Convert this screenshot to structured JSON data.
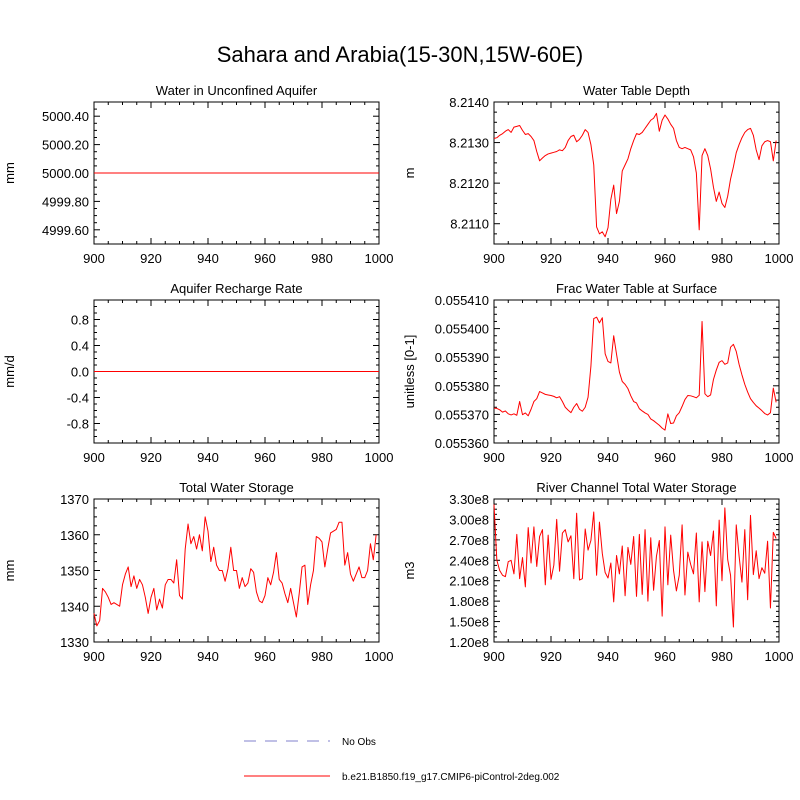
{
  "figure": {
    "title": "Sahara and Arabia(15-30N,15W-60E)"
  },
  "legend": {
    "items": [
      {
        "label": "No Obs",
        "color": "#9b9bd6",
        "dash": true
      },
      {
        "label": "b.e21.B1850.f19_g17.CMIP6-piControl-2deg.002",
        "color": "#ff0000",
        "dash": false
      }
    ]
  },
  "chart_data": [
    {
      "type": "line",
      "title": "Water in Unconfined Aquifer",
      "ylabel": "mm",
      "xlim": [
        900,
        1000
      ],
      "ylim": [
        4999.5,
        5000.5
      ],
      "xticks": [
        "900",
        "920",
        "940",
        "960",
        "980",
        "1000"
      ],
      "yticks": [
        "4999.60",
        "4999.80",
        "5000.00",
        "5000.20",
        "5000.40"
      ],
      "series": [
        {
          "color": "#ff0000",
          "x": [
            900,
            1000
          ],
          "y": [
            5000.0,
            5000.0
          ]
        }
      ]
    },
    {
      "type": "line",
      "title": "Water Table Depth",
      "ylabel": "m",
      "xlim": [
        900,
        1000
      ],
      "ylim": [
        8.2105,
        8.214
      ],
      "xticks": [
        "900",
        "920",
        "940",
        "960",
        "980",
        "1000"
      ],
      "yticks": [
        "8.2110",
        "8.2120",
        "8.2130",
        "8.2140"
      ],
      "series": [
        {
          "color": "#ff0000",
          "x": [
            900,
            901,
            902,
            903,
            904,
            905,
            906,
            907,
            908,
            909,
            910,
            911,
            912,
            913,
            914,
            915,
            916,
            917,
            918,
            919,
            920,
            921,
            922,
            923,
            924,
            925,
            926,
            927,
            928,
            929,
            930,
            931,
            932,
            933,
            934,
            935,
            936,
            937,
            938,
            939,
            940,
            941,
            942,
            943,
            944,
            945,
            946,
            947,
            948,
            949,
            950,
            951,
            952,
            953,
            954,
            955,
            956,
            957,
            958,
            959,
            960,
            961,
            962,
            963,
            964,
            965,
            966,
            967,
            968,
            969,
            970,
            971,
            972,
            973,
            974,
            975,
            976,
            977,
            978,
            979,
            980,
            981,
            982,
            983,
            984,
            985,
            986,
            987,
            988,
            989,
            990,
            991,
            992,
            993,
            994,
            995,
            996,
            997,
            998,
            999
          ],
          "y": [
            8.2131,
            8.21312,
            8.21318,
            8.21322,
            8.21328,
            8.21332,
            8.21325,
            8.21338,
            8.2134,
            8.21342,
            8.2133,
            8.2132,
            8.21322,
            8.21315,
            8.21305,
            8.21278,
            8.21255,
            8.21262,
            8.21268,
            8.21272,
            8.21274,
            8.21276,
            8.21278,
            8.21282,
            8.2128,
            8.21288,
            8.21305,
            8.21315,
            8.21318,
            8.21302,
            8.21308,
            8.21318,
            8.21332,
            8.21325,
            8.21295,
            8.21245,
            8.21092,
            8.21075,
            8.2108,
            8.21068,
            8.2109,
            8.2116,
            8.21195,
            8.21125,
            8.21155,
            8.2123,
            8.21245,
            8.2126,
            8.21285,
            8.21305,
            8.21322,
            8.2132,
            8.21325,
            8.21335,
            8.21345,
            8.21355,
            8.2136,
            8.21372,
            8.21328,
            8.21355,
            8.21368,
            8.21358,
            8.21345,
            8.21335,
            8.21305,
            8.21288,
            8.21285,
            8.21288,
            8.21285,
            8.21282,
            8.21265,
            8.21225,
            8.21085,
            8.21268,
            8.21285,
            8.21268,
            8.21235,
            8.2119,
            8.21155,
            8.21178,
            8.2115,
            8.2114,
            8.21168,
            8.2121,
            8.2124,
            8.21275,
            8.21295,
            8.21312,
            8.21325,
            8.21332,
            8.21335,
            8.21318,
            8.21282,
            8.21258,
            8.21292,
            8.21302,
            8.21305,
            8.21302,
            8.21255,
            8.21305
          ]
        }
      ]
    },
    {
      "type": "line",
      "title": "Aquifer Recharge Rate",
      "ylabel": "mm/d",
      "xlim": [
        900,
        1000
      ],
      "ylim": [
        -1.1,
        1.1
      ],
      "xticks": [
        "900",
        "920",
        "940",
        "960",
        "980",
        "1000"
      ],
      "yticks": [
        "-0.8",
        "-0.4",
        "0.0",
        "0.4",
        "0.8"
      ],
      "series": [
        {
          "color": "#ff0000",
          "x": [
            900,
            1000
          ],
          "y": [
            0.0,
            0.0
          ]
        }
      ]
    },
    {
      "type": "line",
      "title": "Frac Water Table at Surface",
      "ylabel": "unitless [0-1]",
      "xlim": [
        900,
        1000
      ],
      "ylim": [
        0.05536,
        0.05541
      ],
      "xticks": [
        "900",
        "920",
        "940",
        "960",
        "980",
        "1000"
      ],
      "yticks": [
        "0.055360",
        "0.055370",
        "0.055380",
        "0.055390",
        "0.055400",
        "0.055410"
      ],
      "series": [
        {
          "color": "#ff0000",
          "x": [
            900,
            901,
            902,
            903,
            904,
            905,
            906,
            907,
            908,
            909,
            910,
            911,
            912,
            913,
            914,
            915,
            916,
            917,
            918,
            919,
            920,
            921,
            922,
            923,
            924,
            925,
            926,
            927,
            928,
            929,
            930,
            931,
            932,
            933,
            934,
            935,
            936,
            937,
            938,
            939,
            940,
            941,
            942,
            943,
            944,
            945,
            946,
            947,
            948,
            949,
            950,
            951,
            952,
            953,
            954,
            955,
            956,
            957,
            958,
            959,
            960,
            961,
            962,
            963,
            964,
            965,
            966,
            967,
            968,
            969,
            970,
            971,
            972,
            973,
            974,
            975,
            976,
            977,
            978,
            979,
            980,
            981,
            982,
            983,
            984,
            985,
            986,
            987,
            988,
            989,
            990,
            991,
            992,
            993,
            994,
            995,
            996,
            997,
            998,
            999
          ],
          "y": [
            0.0553722,
            0.0553721,
            0.0553716,
            0.0553708,
            0.0553712,
            0.0553702,
            0.0553698,
            0.0553702,
            0.0553697,
            0.0553745,
            0.0553699,
            0.0553705,
            0.0553695,
            0.0553718,
            0.0553745,
            0.0553755,
            0.055378,
            0.0553775,
            0.055377,
            0.0553768,
            0.0553766,
            0.0553763,
            0.0553758,
            0.0553762,
            0.0553745,
            0.0553725,
            0.0553715,
            0.0553706,
            0.0553725,
            0.0553738,
            0.0553718,
            0.0553711,
            0.0553725,
            0.055376,
            0.0553868,
            0.0554035,
            0.055404,
            0.055402,
            0.0554038,
            0.0553912,
            0.0553885,
            0.055388,
            0.0553975,
            0.055391,
            0.0553848,
            0.0553815,
            0.0553805,
            0.055379,
            0.0553765,
            0.0553745,
            0.055374,
            0.055372,
            0.0553712,
            0.0553705,
            0.05537,
            0.0553684,
            0.0553678,
            0.055367,
            0.0553662,
            0.0553652,
            0.0553645,
            0.0553702,
            0.0553668,
            0.055367,
            0.0553695,
            0.0553706,
            0.0553728,
            0.0553752,
            0.0553766,
            0.0553765,
            0.0553762,
            0.0553758,
            0.0553767,
            0.0554025,
            0.0553772,
            0.0553762,
            0.0553768,
            0.0553822,
            0.0553855,
            0.0553882,
            0.0553888,
            0.0553875,
            0.055388,
            0.0553935,
            0.0553945,
            0.055392,
            0.0553875,
            0.0553838,
            0.0553805,
            0.0553778,
            0.0553755,
            0.0553742,
            0.055373,
            0.0553722,
            0.0553713,
            0.0553703,
            0.0553698,
            0.0553706,
            0.0553792,
            0.0553742
          ]
        }
      ]
    },
    {
      "type": "line",
      "title": "Total Water Storage",
      "ylabel": "mm",
      "xlim": [
        900,
        1000
      ],
      "ylim": [
        1330,
        1370
      ],
      "xticks": [
        "900",
        "920",
        "940",
        "960",
        "980",
        "1000"
      ],
      "yticks": [
        "1330",
        "1340",
        "1350",
        "1360",
        "1370"
      ],
      "series": [
        {
          "color": "#ff0000",
          "x": [
            900,
            901,
            902,
            903,
            904,
            905,
            906,
            907,
            908,
            909,
            910,
            911,
            912,
            913,
            914,
            915,
            916,
            917,
            918,
            919,
            920,
            921,
            922,
            923,
            924,
            925,
            926,
            927,
            928,
            929,
            930,
            931,
            932,
            933,
            934,
            935,
            936,
            937,
            938,
            939,
            940,
            941,
            942,
            943,
            944,
            945,
            946,
            947,
            948,
            949,
            950,
            951,
            952,
            953,
            954,
            955,
            956,
            957,
            958,
            959,
            960,
            961,
            962,
            963,
            964,
            965,
            966,
            967,
            968,
            969,
            970,
            971,
            972,
            973,
            974,
            975,
            976,
            977,
            978,
            979,
            980,
            981,
            982,
            983,
            984,
            985,
            986,
            987,
            988,
            989,
            990,
            991,
            992,
            993,
            994,
            995,
            996,
            997,
            998,
            999
          ],
          "y": [
            1338,
            1334.5,
            1336,
            1345,
            1344,
            1342.5,
            1340.5,
            1341,
            1340.5,
            1340,
            1346,
            1349,
            1351,
            1345.5,
            1348.5,
            1345,
            1347.5,
            1346,
            1342.5,
            1338,
            1342.5,
            1345,
            1339,
            1342,
            1339.5,
            1346,
            1347.5,
            1347.5,
            1346.5,
            1353,
            1343,
            1342,
            1356,
            1363,
            1357.5,
            1359.5,
            1356,
            1360,
            1355.5,
            1365,
            1361,
            1352.5,
            1356.5,
            1351.5,
            1350,
            1350,
            1347,
            1350.5,
            1356.5,
            1350,
            1350,
            1345,
            1348,
            1345.5,
            1346.5,
            1350.5,
            1349.5,
            1344,
            1341.5,
            1341,
            1343,
            1348,
            1346,
            1349.5,
            1355,
            1347.5,
            1346.5,
            1343.5,
            1341,
            1345,
            1341,
            1337,
            1343.5,
            1351,
            1351.5,
            1340.5,
            1346,
            1350,
            1359.5,
            1359,
            1358,
            1351,
            1356,
            1360.5,
            1361,
            1361.5,
            1363.5,
            1363.5,
            1351.5,
            1355,
            1349,
            1347,
            1349,
            1351,
            1348,
            1348,
            1350,
            1357.5,
            1353,
            1360
          ]
        }
      ]
    },
    {
      "type": "line",
      "title": "River Channel Total Water Storage",
      "ylabel": "m3",
      "xlim": [
        900,
        1000
      ],
      "ylim": [
        120000000,
        330000000
      ],
      "xticks": [
        "900",
        "920",
        "940",
        "960",
        "980",
        "1000"
      ],
      "yticks": [
        "1.20e8",
        "1.50e8",
        "1.80e8",
        "2.10e8",
        "2.40e8",
        "2.70e8",
        "3.00e8",
        "3.30e8"
      ],
      "series": [
        {
          "color": "#ff0000",
          "x": [
            900,
            901,
            902,
            903,
            904,
            905,
            906,
            907,
            908,
            909,
            910,
            911,
            912,
            913,
            914,
            915,
            916,
            917,
            918,
            919,
            920,
            921,
            922,
            923,
            924,
            925,
            926,
            927,
            928,
            929,
            930,
            931,
            932,
            933,
            934,
            935,
            936,
            937,
            938,
            939,
            940,
            941,
            942,
            943,
            944,
            945,
            946,
            947,
            948,
            949,
            950,
            951,
            952,
            953,
            954,
            955,
            956,
            957,
            958,
            959,
            960,
            961,
            962,
            963,
            964,
            965,
            966,
            967,
            968,
            969,
            970,
            971,
            972,
            973,
            974,
            975,
            976,
            977,
            978,
            979,
            980,
            981,
            982,
            983,
            984,
            985,
            986,
            987,
            988,
            989,
            990,
            991,
            992,
            993,
            994,
            995,
            996,
            997,
            998,
            999
          ],
          "y": [
            322000000,
            240000000,
            225000000,
            218000000,
            216000000,
            238000000,
            240000000,
            220000000,
            278000000,
            213000000,
            244000000,
            201000000,
            288000000,
            236000000,
            289000000,
            231000000,
            275000000,
            285000000,
            204000000,
            277000000,
            212000000,
            233000000,
            300000000,
            224000000,
            280000000,
            285000000,
            267000000,
            276000000,
            213000000,
            309000000,
            211000000,
            213000000,
            286000000,
            255000000,
            269000000,
            311000000,
            218000000,
            296000000,
            250000000,
            222000000,
            214000000,
            236000000,
            179000000,
            247000000,
            220000000,
            261000000,
            188000000,
            259000000,
            234000000,
            275000000,
            187000000,
            278000000,
            190000000,
            285000000,
            180000000,
            273000000,
            196000000,
            246000000,
            269000000,
            158000000,
            289000000,
            204000000,
            277000000,
            225000000,
            195000000,
            218000000,
            292000000,
            189000000,
            252000000,
            234000000,
            220000000,
            280000000,
            179000000,
            267000000,
            194000000,
            268000000,
            247000000,
            283000000,
            173000000,
            299000000,
            210000000,
            317000000,
            241000000,
            218000000,
            142000000,
            292000000,
            246000000,
            208000000,
            285000000,
            182000000,
            306000000,
            219000000,
            254000000,
            213000000,
            229000000,
            221000000,
            268000000,
            170000000,
            281000000,
            272000000
          ]
        }
      ]
    }
  ]
}
